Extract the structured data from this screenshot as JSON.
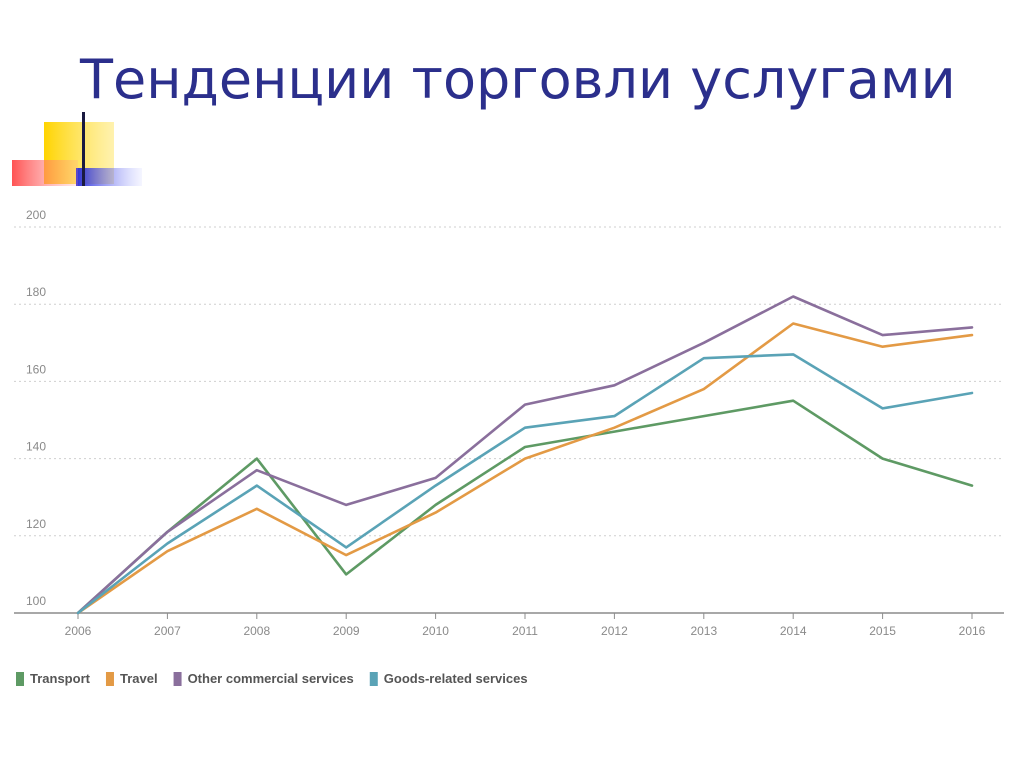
{
  "slide": {
    "title": "Тенденции торговли услугами"
  },
  "chart_data": {
    "type": "line",
    "x": [
      "2006",
      "2007",
      "2008",
      "2009",
      "2010",
      "2011",
      "2012",
      "2013",
      "2014",
      "2015",
      "2016"
    ],
    "ylim": [
      100,
      200
    ],
    "yticks": [
      "100",
      "120",
      "140",
      "160",
      "180",
      "200"
    ],
    "grid": true,
    "legend_position": "bottom-left",
    "series": [
      {
        "name": "Transport",
        "color": "#5e9a64",
        "values": [
          100,
          121,
          140,
          110,
          128,
          143,
          147,
          151,
          155,
          140,
          133
        ]
      },
      {
        "name": "Travel",
        "color": "#e39a45",
        "values": [
          100,
          116,
          127,
          115,
          126,
          140,
          148,
          158,
          175,
          169,
          172
        ]
      },
      {
        "name": "Other commercial services",
        "color": "#8a6f9c",
        "values": [
          100,
          121,
          137,
          128,
          135,
          154,
          159,
          170,
          182,
          172,
          174
        ]
      },
      {
        "name": "Goods-related services",
        "color": "#5aa3b6",
        "values": [
          100,
          118,
          133,
          117,
          133,
          148,
          151,
          166,
          167,
          153,
          157
        ]
      }
    ]
  }
}
